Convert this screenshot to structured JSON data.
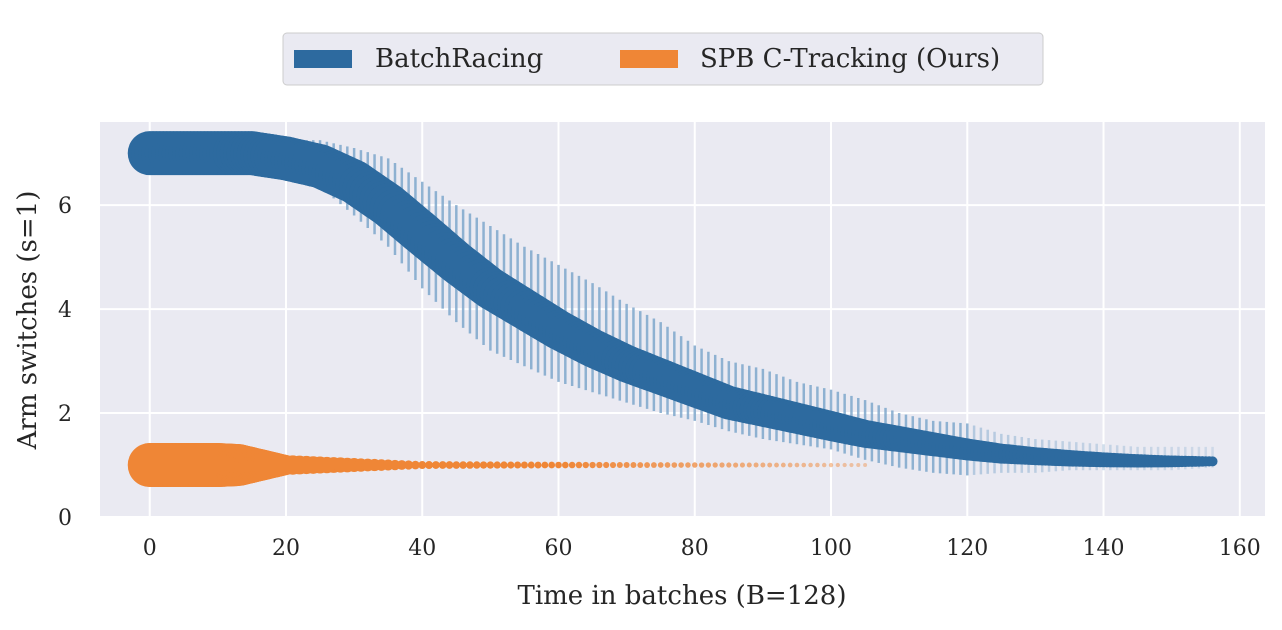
{
  "chart_data": {
    "type": "scatter",
    "title": "",
    "xlabel": "Time in batches (B=128)",
    "ylabel": "Arm switches (s=1)",
    "xlim": [
      -7.3,
      163.7
    ],
    "ylim": [
      0,
      7.6
    ],
    "xticks": [
      0,
      20,
      40,
      60,
      80,
      100,
      120,
      140,
      160
    ],
    "yticks": [
      0,
      2,
      4,
      6
    ],
    "grid": true,
    "legend_position": "top-center",
    "series": [
      {
        "name": "BatchRacing",
        "color": "#2d6a9f",
        "error_color": "#7fa8cc",
        "x": [
          0,
          5,
          10,
          15,
          20,
          25,
          30,
          35,
          40,
          45,
          50,
          55,
          60,
          65,
          70,
          75,
          80,
          85,
          90,
          95,
          100,
          105,
          110,
          115,
          120,
          125,
          130,
          135,
          140,
          145,
          150,
          156
        ],
        "mean": [
          7,
          7,
          7,
          7,
          6.9,
          6.75,
          6.45,
          6.0,
          5.45,
          4.9,
          4.4,
          4.0,
          3.6,
          3.25,
          2.95,
          2.7,
          2.45,
          2.2,
          2.05,
          1.9,
          1.75,
          1.6,
          1.5,
          1.4,
          1.3,
          1.22,
          1.17,
          1.13,
          1.1,
          1.08,
          1.07,
          1.07
        ],
        "upper": [
          7,
          7,
          7,
          7,
          7.25,
          7.25,
          7.1,
          6.9,
          6.45,
          6.0,
          5.6,
          5.2,
          4.85,
          4.5,
          4.1,
          3.75,
          3.3,
          3.0,
          2.85,
          2.6,
          2.45,
          2.25,
          2.0,
          1.85,
          1.8,
          1.6,
          1.5,
          1.45,
          1.4,
          1.35,
          1.35,
          1.35
        ],
        "lower": [
          7,
          7,
          7,
          7,
          6.6,
          6.35,
          5.8,
          5.2,
          4.4,
          3.75,
          3.2,
          2.9,
          2.6,
          2.4,
          2.2,
          2.0,
          1.85,
          1.65,
          1.5,
          1.4,
          1.3,
          1.1,
          0.95,
          0.85,
          0.8,
          0.85,
          0.85,
          0.9,
          0.9,
          0.9,
          0.9,
          0.95
        ]
      },
      {
        "name": "SPB C-Tracking (Ours)",
        "color": "#ef8636",
        "x": [
          0,
          10,
          20,
          40,
          60,
          80,
          100,
          105
        ],
        "mean": [
          1,
          1,
          1,
          1,
          1,
          1,
          1,
          1
        ]
      }
    ]
  }
}
